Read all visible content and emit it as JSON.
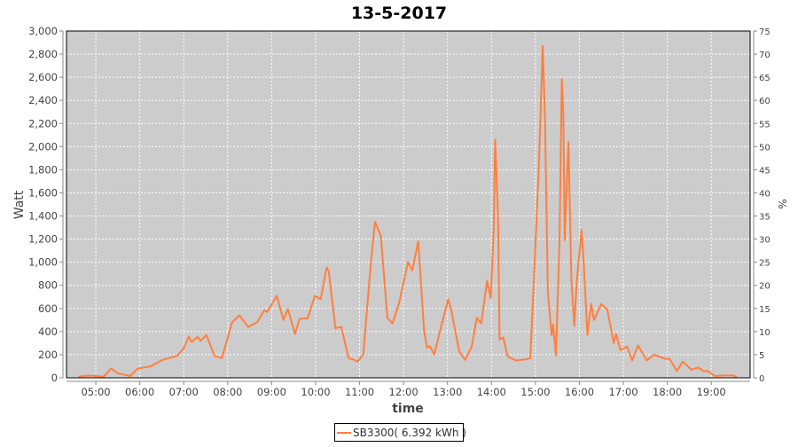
{
  "chart_data": {
    "type": "line",
    "title": "13-5-2017",
    "xlabel": "time",
    "ylabel": "Watt",
    "y2label": "%",
    "xlim": [
      "04:20",
      "19:53"
    ],
    "ylim": [
      0,
      3000
    ],
    "y2lim": [
      0,
      75
    ],
    "grid": true,
    "legend_placement": "bottom",
    "x_ticks": [
      "05:00",
      "06:00",
      "07:00",
      "08:00",
      "09:00",
      "10:00",
      "11:00",
      "12:00",
      "13:00",
      "14:00",
      "15:00",
      "16:00",
      "17:00",
      "18:00",
      "19:00"
    ],
    "y_ticks": [
      "0",
      "200",
      "400",
      "600",
      "800",
      "1,000",
      "1,200",
      "1,400",
      "1,600",
      "1,800",
      "2,000",
      "2,200",
      "2,400",
      "2,600",
      "2,800",
      "3,000"
    ],
    "y2_ticks": [
      "0",
      "5",
      "10",
      "15",
      "20",
      "25",
      "30",
      "35",
      "40",
      "45",
      "50",
      "55",
      "60",
      "65",
      "70",
      "75"
    ],
    "colors": {
      "series": "#ff7f3f",
      "plot_background": "#cccccc",
      "grid": "#ffffff"
    },
    "series": [
      {
        "name": "SB3300( 6.392 kWh )",
        "x": [
          "04:36",
          "04:50",
          "05:11",
          "05:21",
          "05:30",
          "05:47",
          "05:57",
          "06:15",
          "06:31",
          "06:51",
          "07:00",
          "07:07",
          "07:11",
          "07:19",
          "07:23",
          "07:31",
          "07:42",
          "07:52",
          "08:06",
          "08:16",
          "08:28",
          "08:40",
          "08:50",
          "08:54",
          "09:07",
          "09:16",
          "09:22",
          "09:32",
          "09:38",
          "09:49",
          "09:59",
          "10:07",
          "10:15",
          "10:18",
          "10:27",
          "10:35",
          "10:45",
          "10:51",
          "10:57",
          "11:05",
          "11:15",
          "11:21",
          "11:29",
          "11:38",
          "11:45",
          "11:54",
          "12:06",
          "12:12",
          "12:20",
          "12:24",
          "12:28",
          "12:32",
          "12:36",
          "12:42",
          "12:50",
          "13:01",
          "13:05",
          "13:16",
          "13:24",
          "13:33",
          "13:40",
          "13:46",
          "13:54",
          "13:59",
          "14:03",
          "14:05",
          "14:09",
          "14:11",
          "14:16",
          "14:22",
          "14:33",
          "14:47",
          "14:53",
          "14:59",
          "15:05",
          "15:10",
          "15:13",
          "15:17",
          "15:22",
          "15:24",
          "15:28",
          "15:33",
          "15:36",
          "15:38",
          "15:40",
          "15:41",
          "15:45",
          "15:49",
          "15:53",
          "15:56",
          "16:03",
          "16:06",
          "16:11",
          "16:16",
          "16:20",
          "16:30",
          "16:38",
          "16:47",
          "16:50",
          "16:56",
          "17:05",
          "17:12",
          "17:20",
          "17:32",
          "17:42",
          "17:57",
          "18:03",
          "18:13",
          "18:21",
          "18:33",
          "18:42",
          "18:50",
          "18:55",
          "19:05",
          "19:19",
          "19:30",
          "19:35"
        ],
        "values": [
          10,
          20,
          10,
          80,
          40,
          15,
          80,
          100,
          155,
          190,
          255,
          355,
          310,
          355,
          320,
          370,
          190,
          170,
          480,
          540,
          440,
          480,
          585,
          570,
          710,
          500,
          595,
          380,
          510,
          515,
          710,
          680,
          955,
          920,
          430,
          440,
          170,
          160,
          140,
          200,
          960,
          1350,
          1230,
          520,
          470,
          650,
          1000,
          930,
          1180,
          790,
          410,
          260,
          275,
          200,
          410,
          680,
          590,
          230,
          155,
          270,
          520,
          470,
          840,
          690,
          1280,
          2060,
          1410,
          330,
          350,
          185,
          150,
          160,
          170,
          990,
          1890,
          2870,
          2270,
          740,
          370,
          460,
          195,
          1200,
          2585,
          2300,
          1190,
          1400,
          2040,
          860,
          450,
          810,
          1280,
          990,
          370,
          640,
          500,
          640,
          590,
          300,
          380,
          240,
          270,
          150,
          280,
          150,
          200,
          165,
          165,
          60,
          140,
          70,
          90,
          55,
          60,
          15,
          20,
          20,
          5
        ]
      }
    ]
  }
}
